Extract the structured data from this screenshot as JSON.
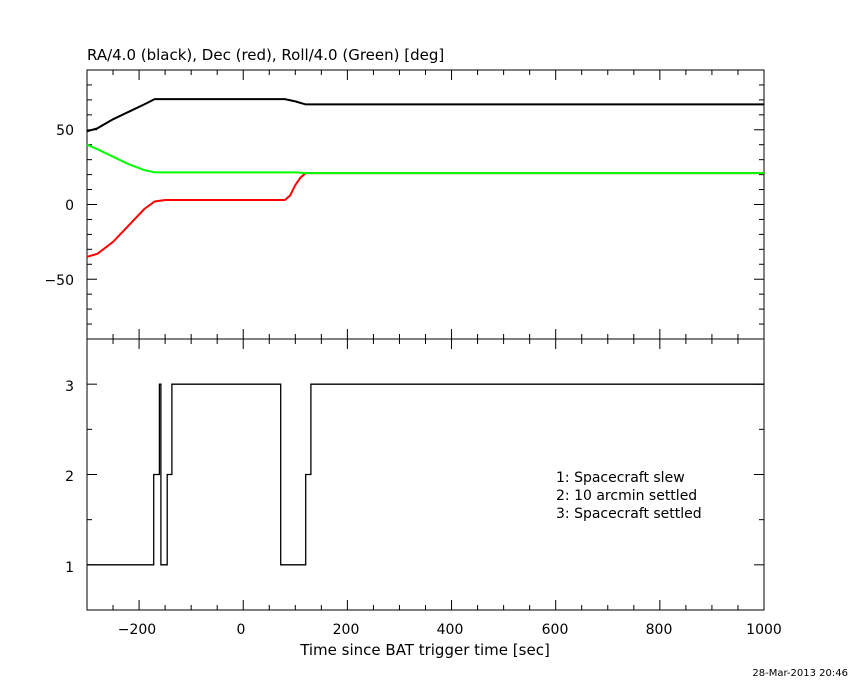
{
  "chart_data": [
    {
      "type": "line",
      "title": "RA/4.0 (black), Dec (red), Roll/4.0 (Green) [deg]",
      "xlim": [
        -300,
        1000
      ],
      "ylim": [
        -90,
        90
      ],
      "ytick_labels": [
        "50",
        "0",
        "−50"
      ],
      "grid": false,
      "series": [
        {
          "color": "#000000",
          "x": [
            -300,
            -280,
            -250,
            -220,
            -190,
            -170,
            -150,
            -100,
            0,
            80,
            100,
            120,
            200,
            400,
            600,
            800,
            1000
          ],
          "y": [
            49,
            51,
            57,
            62,
            67,
            70.5,
            70.5,
            70.5,
            70.5,
            70.5,
            69,
            67,
            67,
            67,
            67,
            67,
            67
          ]
        },
        {
          "color": "#ff0000",
          "x": [
            -300,
            -280,
            -250,
            -220,
            -190,
            -170,
            -150,
            -100,
            0,
            80,
            90,
            100,
            110,
            120,
            200,
            400,
            600,
            800,
            1000
          ],
          "y": [
            -35,
            -33,
            -25,
            -14,
            -3,
            2,
            3,
            3,
            3,
            3,
            6,
            13,
            18,
            21,
            21,
            21,
            21,
            21,
            21
          ]
        },
        {
          "color": "#00ff00",
          "x": [
            -300,
            -280,
            -250,
            -220,
            -190,
            -170,
            -150,
            0,
            100,
            120,
            200,
            400,
            600,
            800,
            1000
          ],
          "y": [
            40,
            37,
            32,
            27,
            23,
            21.5,
            21.5,
            21.5,
            21.5,
            21,
            21,
            21,
            21,
            21,
            21
          ]
        }
      ]
    },
    {
      "type": "line",
      "xlabel": "Time since BAT trigger time [sec]",
      "xlim": [
        -300,
        1000
      ],
      "ylim": [
        0.5,
        3.5
      ],
      "xtick_labels": [
        "−200",
        "0",
        "200",
        "400",
        "600",
        "800",
        "1000"
      ],
      "ytick_labels": [
        "1",
        "2",
        "3"
      ],
      "legend_position": "right",
      "legend": [
        "1: Spacecraft slew",
        "2: 10 arcmin settled",
        "3: Spacecraft settled"
      ],
      "series": [
        {
          "color": "#000000",
          "step": true,
          "x": [
            -300,
            -172,
            -161,
            -158,
            -146,
            -137,
            72,
            120,
            130,
            1000
          ],
          "y": [
            1,
            2,
            3,
            1,
            2,
            3,
            1,
            2,
            3,
            3
          ]
        }
      ]
    }
  ],
  "timestamp": "28-Mar-2013 20:46"
}
